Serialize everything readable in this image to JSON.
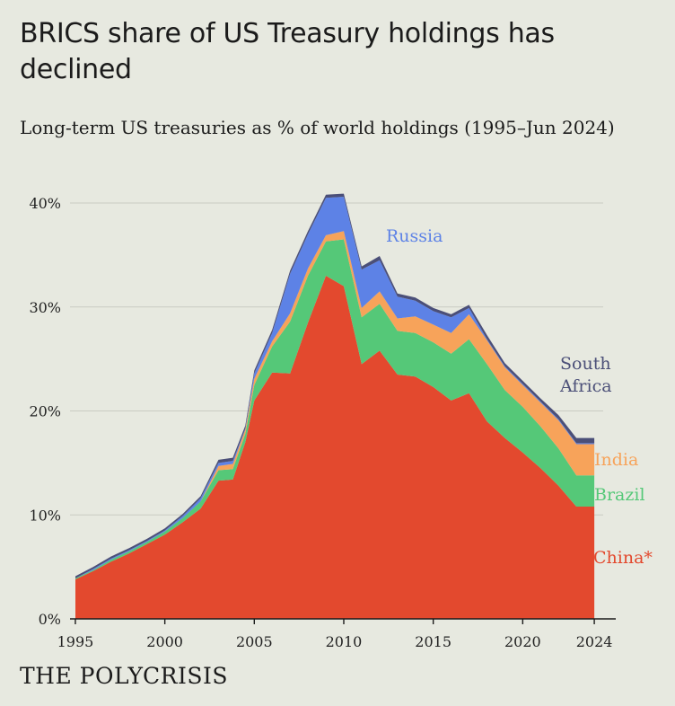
{
  "header": {
    "title": "BRICS share of US Treasury holdings has declined",
    "subtitle": "Long-term US treasuries as % of world holdings (1995–Jun 2024)"
  },
  "brand": "THE POLYCRISIS",
  "colors": {
    "China": "#e3492e",
    "Brazil": "#55c878",
    "India": "#f7a35a",
    "Russia": "#5d82e6",
    "South Africa": "#4b4f78",
    "grid": "#c9cbc2",
    "axis": "#1b1b1b"
  },
  "chart_data": {
    "type": "area",
    "stacked": true,
    "title": "BRICS share of US Treasury holdings has declined",
    "subtitle": "Long-term US treasuries as % of world holdings (1995–Jun 2024)",
    "xlabel": "",
    "ylabel": "",
    "xlim": [
      1994.3,
      2025.3
    ],
    "ylim": [
      0,
      40
    ],
    "x_ticks": [
      1995,
      2000,
      2005,
      2010,
      2015,
      2020,
      2024
    ],
    "x_tick_labels": [
      "1995",
      "2000",
      "2005",
      "2010",
      "2015",
      "2020",
      "2024"
    ],
    "y_ticks": [
      0,
      10,
      20,
      30,
      40
    ],
    "y_tick_labels": [
      "0%",
      "10%",
      "20%",
      "30%",
      "40%"
    ],
    "grid": "horizontal",
    "x": [
      1995,
      1996,
      1997,
      1998,
      1999,
      2000,
      2001,
      2002,
      2003,
      2003.8,
      2004.5,
      2005,
      2006,
      2007,
      2008,
      2009,
      2010,
      2011,
      2012,
      2013,
      2014,
      2015,
      2016,
      2017,
      2018,
      2019,
      2020,
      2021,
      2022,
      2023,
      2024
    ],
    "series": [
      {
        "name": "China*",
        "values": [
          3.8,
          4.6,
          5.5,
          6.3,
          7.2,
          8.1,
          9.3,
          10.6,
          13.3,
          13.4,
          17.0,
          21.0,
          23.7,
          23.6,
          28.5,
          33.0,
          32.0,
          24.5,
          25.8,
          23.5,
          23.3,
          22.3,
          21.0,
          21.7,
          19.0,
          17.4,
          16.0,
          14.5,
          12.8,
          10.8,
          10.8
        ]
      },
      {
        "name": "Brazil",
        "values": [
          0.1,
          0.1,
          0.2,
          0.2,
          0.2,
          0.3,
          0.4,
          0.7,
          1.0,
          1.0,
          0.8,
          1.5,
          2.5,
          5.0,
          4.5,
          3.3,
          4.5,
          4.5,
          4.5,
          4.2,
          4.2,
          4.3,
          4.5,
          5.2,
          5.5,
          4.6,
          4.4,
          4.0,
          3.6,
          3.0,
          3.0
        ]
      },
      {
        "name": "India",
        "values": [
          0.0,
          0.0,
          0.0,
          0.0,
          0.0,
          0.0,
          0.0,
          0.0,
          0.4,
          0.5,
          0.4,
          0.6,
          0.5,
          0.8,
          0.7,
          0.6,
          0.8,
          0.9,
          1.2,
          1.2,
          1.6,
          1.7,
          2.0,
          2.4,
          2.3,
          2.2,
          2.1,
          2.3,
          2.7,
          3.0,
          3.0
        ]
      },
      {
        "name": "Russia",
        "values": [
          0.0,
          0.1,
          0.1,
          0.1,
          0.1,
          0.1,
          0.2,
          0.3,
          0.3,
          0.3,
          0.1,
          0.5,
          0.8,
          3.8,
          3.3,
          3.6,
          3.3,
          3.7,
          3.0,
          2.1,
          1.5,
          1.3,
          1.5,
          0.6,
          0.1,
          0.1,
          0.1,
          0.1,
          0.1,
          0.1,
          0.1
        ]
      },
      {
        "name": "South Africa",
        "values": [
          0.2,
          0.2,
          0.2,
          0.2,
          0.2,
          0.2,
          0.2,
          0.2,
          0.3,
          0.3,
          0.3,
          0.3,
          0.3,
          0.3,
          0.3,
          0.3,
          0.3,
          0.3,
          0.4,
          0.3,
          0.3,
          0.3,
          0.3,
          0.3,
          0.4,
          0.3,
          0.3,
          0.3,
          0.4,
          0.5,
          0.5
        ]
      }
    ],
    "direct_labels": [
      "South Africa",
      "Russia",
      "India",
      "Brazil",
      "China*"
    ]
  }
}
